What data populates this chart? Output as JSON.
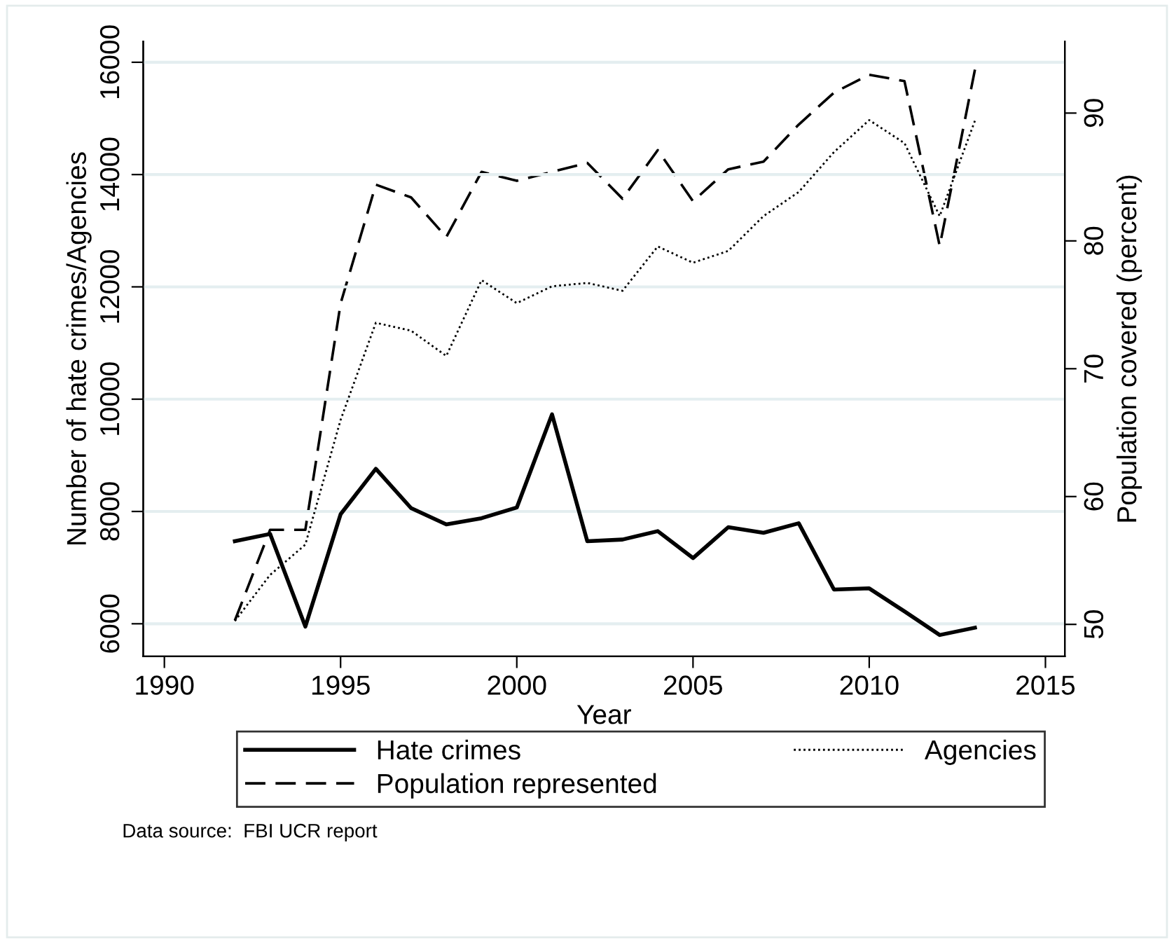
{
  "chart_data": {
    "type": "line",
    "xlabel": "Year",
    "ylabel": "Number of hate crimes/Agencies",
    "y2label": "Population covered (percent)",
    "x": [
      1992,
      1993,
      1994,
      1995,
      1996,
      1997,
      1998,
      1999,
      2000,
      2001,
      2002,
      2003,
      2004,
      2005,
      2006,
      2007,
      2008,
      2009,
      2010,
      2011,
      2012,
      2013
    ],
    "series": [
      {
        "name": "Hate crimes",
        "color": "#000000",
        "line_style": "solid",
        "values": [
          7470,
          7600,
          5950,
          7950,
          8760,
          8060,
          7770,
          7880,
          8070,
          9730,
          7470,
          7500,
          7650,
          7170,
          7720,
          7620,
          7790,
          6610,
          6630,
          6220,
          5800,
          5930
        ]
      },
      {
        "name": "Population represented",
        "color": "#000000",
        "line_style": "dashed",
        "axis": "y2",
        "values": [
          50.3,
          57.4,
          57.4,
          75.1,
          84.4,
          83.4,
          80.3,
          85.4,
          84.7,
          85.4,
          86.1,
          83.3,
          87.1,
          83.1,
          85.6,
          86.2,
          89.1,
          91.6,
          93.0,
          92.5,
          79.6,
          93.4
        ]
      },
      {
        "name": "Agencies",
        "color": "#000000",
        "line_style": "dotted",
        "values": [
          6050,
          6870,
          7410,
          9630,
          11360,
          11220,
          10770,
          12120,
          11710,
          12010,
          12070,
          11930,
          12720,
          12430,
          12640,
          13260,
          13690,
          14400,
          14970,
          14560,
          13260,
          14960
        ]
      }
    ],
    "xlim": [
      1989.4,
      2015.55
    ],
    "xticks": [
      1990,
      1995,
      2000,
      2005,
      2010,
      2015
    ],
    "ylim": [
      5420,
      16370
    ],
    "yticks": [
      6000,
      8000,
      10000,
      12000,
      14000,
      16000
    ],
    "y2lim": [
      47.5,
      95.6
    ],
    "y2ticks": [
      50,
      60,
      70,
      80,
      90
    ],
    "grid": "y",
    "legend": "bottom",
    "annotations": [
      "Data source:  FBI UCR report"
    ]
  }
}
